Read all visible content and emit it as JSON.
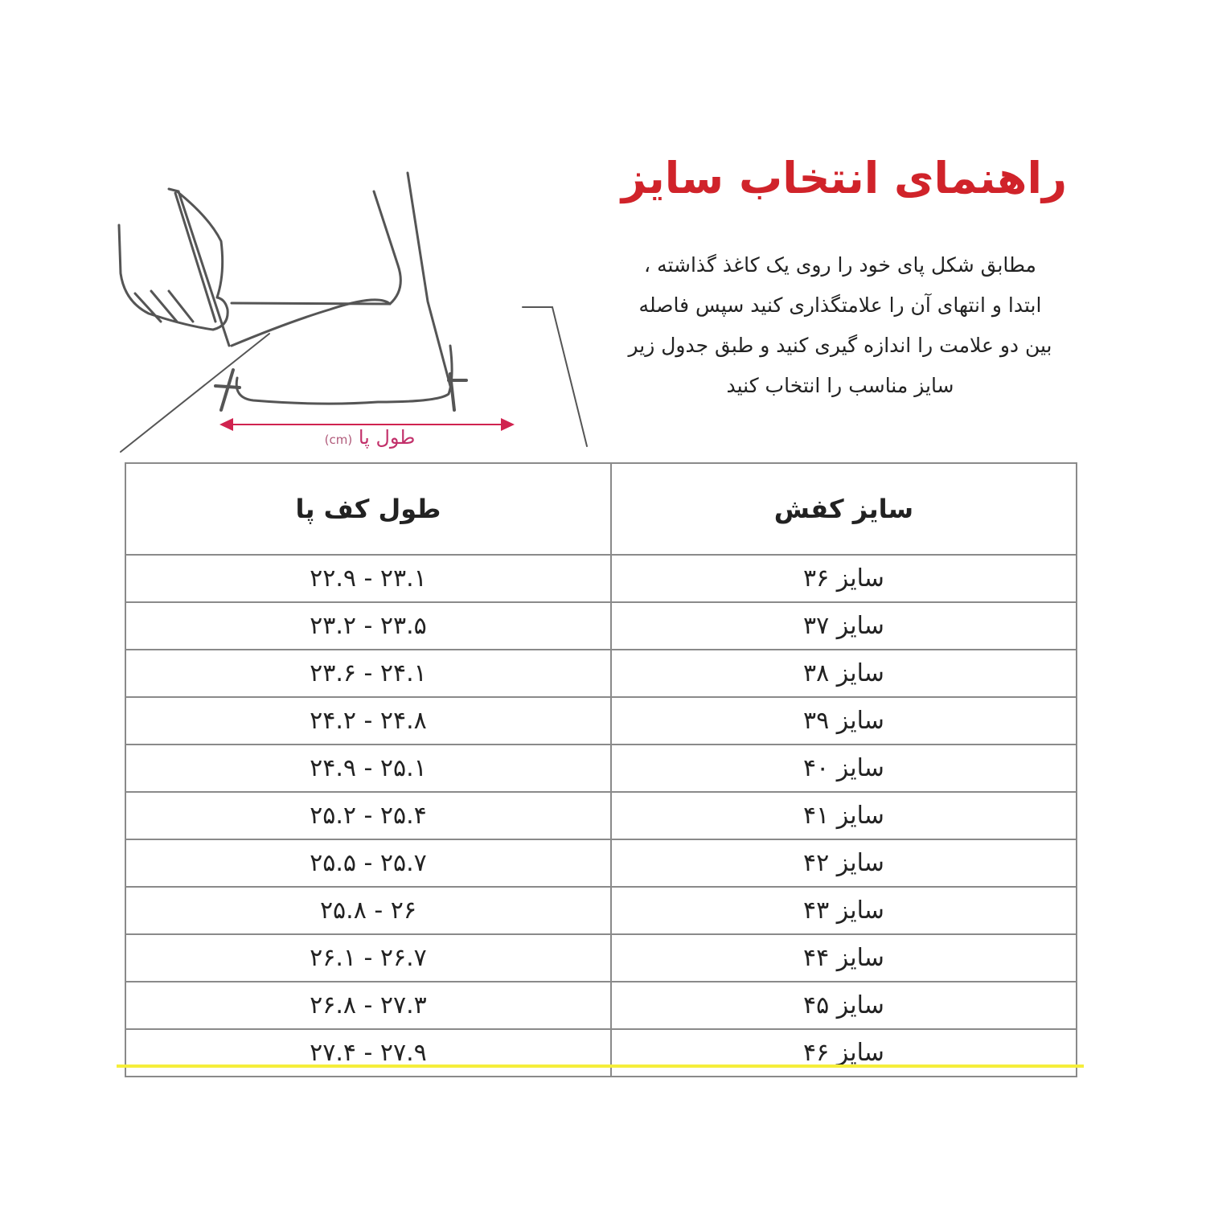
{
  "title": "راهنمای انتخاب سایز",
  "instructions": [
    "مطابق شکل پای خود را روی یک کاغذ گذاشته ،",
    "ابتدا و انتهای آن را علامتگذاری کنید سپس فاصله",
    "بین دو علامت را اندازه گیری کنید و طبق جدول زیر",
    "سایز مناسب را انتخاب کنید"
  ],
  "illustration": {
    "label": "طول پا",
    "unit": "(cm)",
    "arrow_color": "#d0234f"
  },
  "table": {
    "headers": {
      "size": "سایز کفش",
      "length": "طول کف پا"
    },
    "rows": [
      {
        "size": "سایز ۳۶",
        "length": "۲۲.۹ - ۲۳.۱"
      },
      {
        "size": "سایز ۳۷",
        "length": "۲۳.۲ - ۲۳.۵"
      },
      {
        "size": "سایز ۳۸",
        "length": "۲۳.۶ - ۲۴.۱"
      },
      {
        "size": "سایز ۳۹",
        "length": "۲۴.۲ - ۲۴.۸"
      },
      {
        "size": "سایز ۴۰",
        "length": "۲۴.۹ - ۲۵.۱"
      },
      {
        "size": "سایز ۴۱",
        "length": "۲۵.۲ - ۲۵.۴"
      },
      {
        "size": "سایز ۴۲",
        "length": "۲۵.۵ - ۲۵.۷"
      },
      {
        "size": "سایز ۴۳",
        "length": "۲۵.۸ - ۲۶"
      },
      {
        "size": "سایز ۴۴",
        "length": "۲۶.۱ - ۲۶.۷"
      },
      {
        "size": "سایز ۴۵",
        "length": "۲۶.۸ - ۲۷.۳"
      },
      {
        "size": "سایز ۴۶",
        "length": "۲۷.۴ - ۲۷.۹"
      }
    ]
  },
  "colors": {
    "title": "#d0232a",
    "accent_line": "#f5ee3a"
  }
}
